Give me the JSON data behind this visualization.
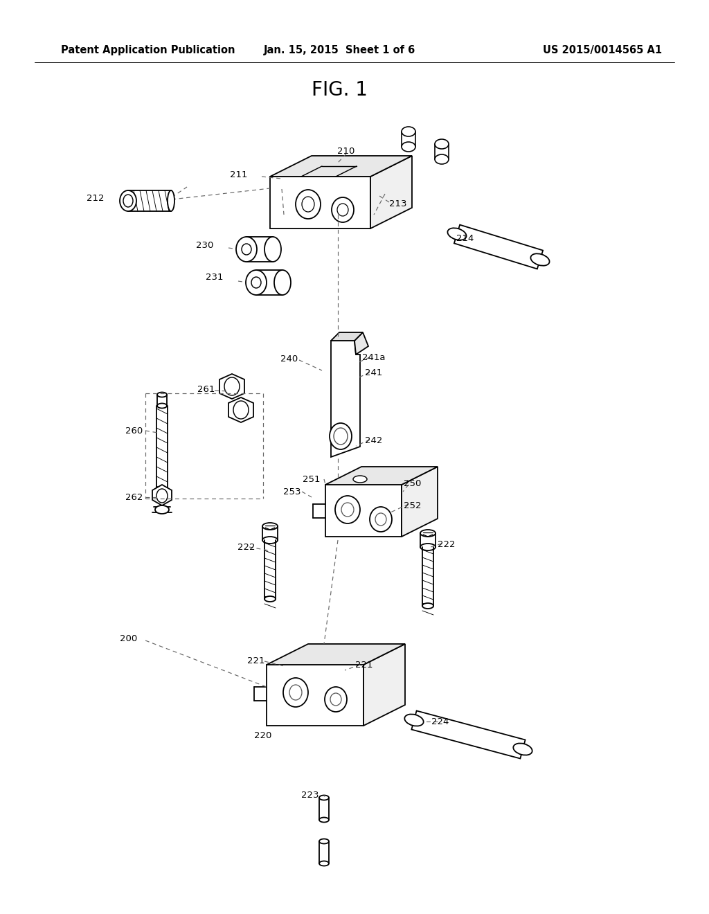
{
  "background_color": "#ffffff",
  "title_header_left": "Patent Application Publication",
  "title_header_center": "Jan. 15, 2015  Sheet 1 of 6",
  "title_header_right": "US 2015/0014565 A1",
  "fig_label": "FIG. 1",
  "header_fontsize": 10.5,
  "fig_label_fontsize": 20,
  "label_fontsize": 9.5,
  "line_color": "#000000",
  "line_width": 1.3
}
